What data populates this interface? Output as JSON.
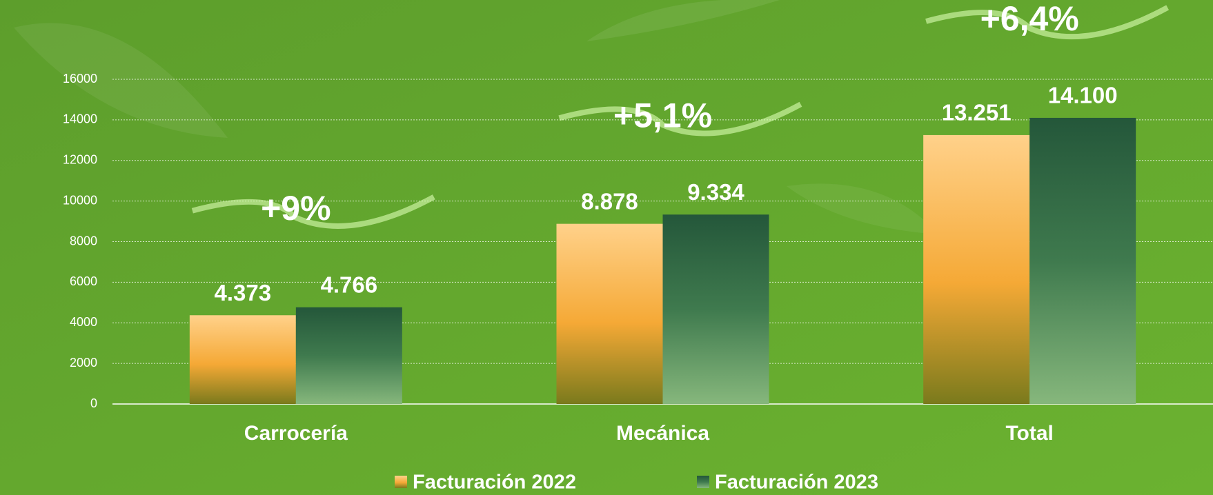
{
  "chart_data": {
    "type": "bar",
    "categories": [
      "Carrocería",
      "Mecánica",
      "Total"
    ],
    "series": [
      {
        "name": "Facturación 2022",
        "color": "#f5a936",
        "values": [
          4373,
          8878,
          13251
        ],
        "value_labels": [
          "4.373",
          "8.878",
          "13.251"
        ]
      },
      {
        "name": "Facturación 2023",
        "color": "#3f7a4e",
        "values": [
          4766,
          9334,
          14100
        ],
        "value_labels": [
          "4.766",
          "9.334",
          "14.100"
        ]
      }
    ],
    "annotations": [
      "+9%",
      "+5,1%",
      "+6,4%"
    ],
    "ylim": [
      0,
      16000
    ],
    "yticks": [
      0,
      2000,
      4000,
      6000,
      8000,
      10000,
      12000,
      14000,
      16000
    ],
    "grid": true,
    "legend": "bottom"
  }
}
